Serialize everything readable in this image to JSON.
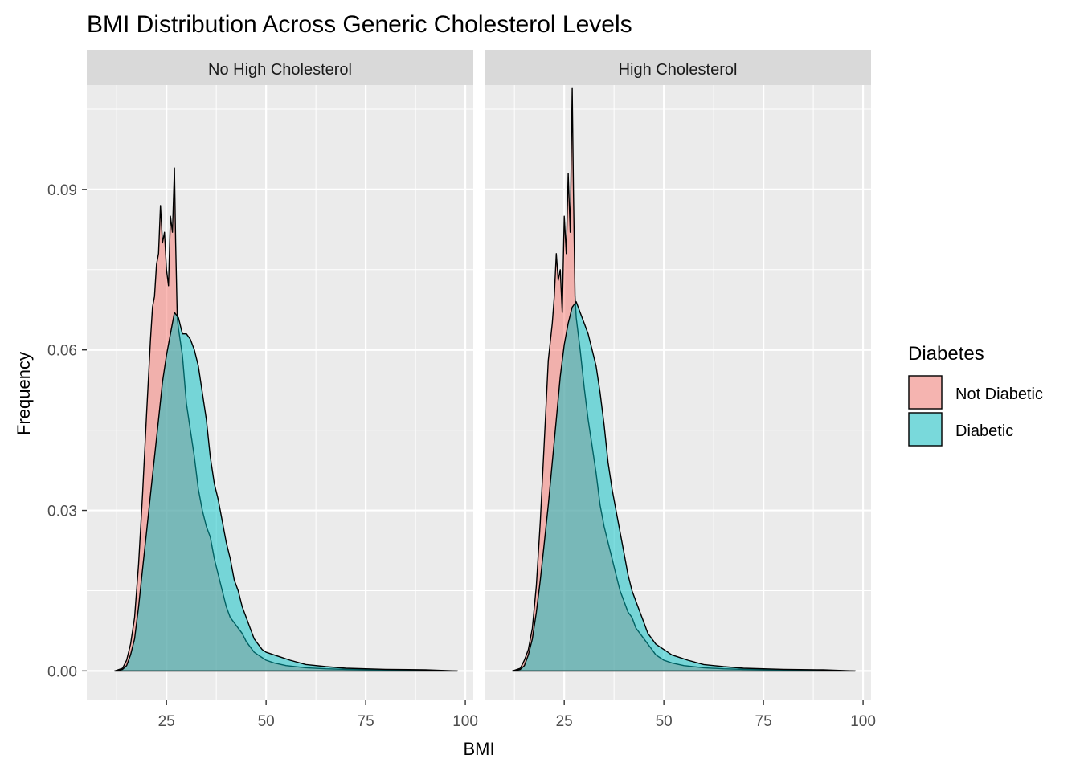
{
  "chart_data": {
    "type": "area",
    "title": "BMI Distribution Across Generic Cholesterol Levels",
    "xlabel": "BMI",
    "ylabel": "Frequency",
    "xlim": [
      5,
      102
    ],
    "ylim": [
      -0.0055,
      0.1095
    ],
    "x_ticks": [
      25,
      50,
      75,
      100
    ],
    "y_ticks": [
      0.0,
      0.03,
      0.06,
      0.09
    ],
    "y_tick_labels": [
      "0.00",
      "0.03",
      "0.06",
      "0.09"
    ],
    "grid": true,
    "legend": {
      "title": "Diabetes",
      "position": "right",
      "entries": [
        {
          "name": "Not Diabetic",
          "color": "#F8766D"
        },
        {
          "name": "Diabetic",
          "color": "#00BFC4"
        }
      ]
    },
    "panels": [
      {
        "label": "No High Cholesterol",
        "series": [
          {
            "name": "Not Diabetic",
            "color": "#F8766D",
            "points": [
              [
                12,
                0
              ],
              [
                14,
                0.0005
              ],
              [
                15,
                0.002
              ],
              [
                16,
                0.005
              ],
              [
                17,
                0.01
              ],
              [
                18,
                0.02
              ],
              [
                19,
                0.033
              ],
              [
                20,
                0.048
              ],
              [
                21,
                0.062
              ],
              [
                21.5,
                0.068
              ],
              [
                22,
                0.07
              ],
              [
                22.5,
                0.076
              ],
              [
                23,
                0.078
              ],
              [
                23.5,
                0.087
              ],
              [
                24,
                0.08
              ],
              [
                24.5,
                0.082
              ],
              [
                25,
                0.075
              ],
              [
                25.5,
                0.072
              ],
              [
                26,
                0.085
              ],
              [
                26.5,
                0.082
              ],
              [
                27,
                0.094
              ],
              [
                27.3,
                0.08
              ],
              [
                27.7,
                0.066
              ],
              [
                28,
                0.064
              ],
              [
                29,
                0.059
              ],
              [
                30,
                0.05
              ],
              [
                31,
                0.045
              ],
              [
                32,
                0.04
              ],
              [
                33,
                0.034
              ],
              [
                34,
                0.03
              ],
              [
                35,
                0.027
              ],
              [
                36,
                0.025
              ],
              [
                37,
                0.021
              ],
              [
                38,
                0.018
              ],
              [
                39,
                0.015
              ],
              [
                40,
                0.012
              ],
              [
                41,
                0.01
              ],
              [
                42,
                0.009
              ],
              [
                43,
                0.008
              ],
              [
                44,
                0.007
              ],
              [
                45,
                0.0055
              ],
              [
                46,
                0.0045
              ],
              [
                47,
                0.0035
              ],
              [
                48,
                0.003
              ],
              [
                50,
                0.002
              ],
              [
                52,
                0.0015
              ],
              [
                55,
                0.001
              ],
              [
                60,
                0.0006
              ],
              [
                65,
                0.0004
              ],
              [
                70,
                0.0003
              ],
              [
                80,
                0.0002
              ],
              [
                90,
                0.0001
              ],
              [
                98,
                0
              ]
            ]
          },
          {
            "name": "Diabetic",
            "color": "#00BFC4",
            "points": [
              [
                12,
                0
              ],
              [
                14,
                0.0003
              ],
              [
                15,
                0.001
              ],
              [
                16,
                0.003
              ],
              [
                17,
                0.006
              ],
              [
                18,
                0.012
              ],
              [
                19,
                0.019
              ],
              [
                20,
                0.026
              ],
              [
                21,
                0.033
              ],
              [
                22,
                0.04
              ],
              [
                23,
                0.047
              ],
              [
                24,
                0.054
              ],
              [
                25,
                0.059
              ],
              [
                26,
                0.063
              ],
              [
                27,
                0.067
              ],
              [
                28,
                0.066
              ],
              [
                29,
                0.063
              ],
              [
                30,
                0.063
              ],
              [
                31,
                0.062
              ],
              [
                32,
                0.06
              ],
              [
                33,
                0.057
              ],
              [
                34,
                0.052
              ],
              [
                35,
                0.047
              ],
              [
                36,
                0.04
              ],
              [
                37,
                0.035
              ],
              [
                38,
                0.032
              ],
              [
                39,
                0.028
              ],
              [
                40,
                0.024
              ],
              [
                41,
                0.021
              ],
              [
                42,
                0.017
              ],
              [
                43,
                0.015
              ],
              [
                44,
                0.012
              ],
              [
                45,
                0.01
              ],
              [
                46,
                0.008
              ],
              [
                47,
                0.006
              ],
              [
                48,
                0.005
              ],
              [
                49,
                0.004
              ],
              [
                50,
                0.0035
              ],
              [
                52,
                0.003
              ],
              [
                54,
                0.0025
              ],
              [
                56,
                0.002
              ],
              [
                60,
                0.0012
              ],
              [
                65,
                0.0008
              ],
              [
                70,
                0.0005
              ],
              [
                80,
                0.0003
              ],
              [
                90,
                0.0002
              ],
              [
                98,
                0
              ]
            ]
          }
        ]
      },
      {
        "label": "High Cholesterol",
        "series": [
          {
            "name": "Not Diabetic",
            "color": "#F8766D",
            "points": [
              [
                12,
                0
              ],
              [
                14,
                0.0005
              ],
              [
                15,
                0.002
              ],
              [
                16,
                0.004
              ],
              [
                17,
                0.008
              ],
              [
                18,
                0.016
              ],
              [
                19,
                0.028
              ],
              [
                20,
                0.043
              ],
              [
                21,
                0.058
              ],
              [
                22,
                0.065
              ],
              [
                22.5,
                0.07
              ],
              [
                23,
                0.078
              ],
              [
                23.5,
                0.073
              ],
              [
                24,
                0.075
              ],
              [
                24.5,
                0.067
              ],
              [
                25,
                0.085
              ],
              [
                25.5,
                0.078
              ],
              [
                26,
                0.093
              ],
              [
                26.5,
                0.082
              ],
              [
                27,
                0.109
              ],
              [
                27.3,
                0.09
              ],
              [
                27.7,
                0.07
              ],
              [
                28,
                0.066
              ],
              [
                29,
                0.06
              ],
              [
                30,
                0.053
              ],
              [
                31,
                0.047
              ],
              [
                32,
                0.042
              ],
              [
                33,
                0.037
              ],
              [
                34,
                0.031
              ],
              [
                35,
                0.027
              ],
              [
                36,
                0.024
              ],
              [
                37,
                0.021
              ],
              [
                38,
                0.018
              ],
              [
                39,
                0.015
              ],
              [
                40,
                0.013
              ],
              [
                41,
                0.011
              ],
              [
                42,
                0.01
              ],
              [
                43,
                0.008
              ],
              [
                44,
                0.007
              ],
              [
                45,
                0.006
              ],
              [
                46,
                0.005
              ],
              [
                47,
                0.004
              ],
              [
                48,
                0.003
              ],
              [
                50,
                0.002
              ],
              [
                52,
                0.0015
              ],
              [
                55,
                0.001
              ],
              [
                60,
                0.0006
              ],
              [
                65,
                0.0004
              ],
              [
                70,
                0.0003
              ],
              [
                80,
                0.0002
              ],
              [
                90,
                0.0001
              ],
              [
                98,
                0
              ]
            ]
          },
          {
            "name": "Diabetic",
            "color": "#00BFC4",
            "points": [
              [
                12,
                0
              ],
              [
                14,
                0.0003
              ],
              [
                15,
                0.001
              ],
              [
                16,
                0.003
              ],
              [
                17,
                0.006
              ],
              [
                18,
                0.011
              ],
              [
                19,
                0.017
              ],
              [
                20,
                0.024
              ],
              [
                21,
                0.031
              ],
              [
                22,
                0.039
              ],
              [
                23,
                0.047
              ],
              [
                24,
                0.055
              ],
              [
                25,
                0.061
              ],
              [
                26,
                0.065
              ],
              [
                27,
                0.068
              ],
              [
                28,
                0.069
              ],
              [
                29,
                0.067
              ],
              [
                30,
                0.065
              ],
              [
                31,
                0.063
              ],
              [
                32,
                0.06
              ],
              [
                33,
                0.057
              ],
              [
                34,
                0.052
              ],
              [
                35,
                0.046
              ],
              [
                36,
                0.039
              ],
              [
                37,
                0.034
              ],
              [
                38,
                0.03
              ],
              [
                39,
                0.026
              ],
              [
                40,
                0.022
              ],
              [
                41,
                0.018
              ],
              [
                42,
                0.015
              ],
              [
                43,
                0.013
              ],
              [
                44,
                0.011
              ],
              [
                45,
                0.009
              ],
              [
                46,
                0.007
              ],
              [
                47,
                0.006
              ],
              [
                48,
                0.005
              ],
              [
                49,
                0.0045
              ],
              [
                50,
                0.004
              ],
              [
                52,
                0.003
              ],
              [
                54,
                0.0025
              ],
              [
                56,
                0.002
              ],
              [
                60,
                0.0012
              ],
              [
                65,
                0.0008
              ],
              [
                70,
                0.0005
              ],
              [
                80,
                0.0003
              ],
              [
                90,
                0.0002
              ],
              [
                98,
                0
              ]
            ]
          }
        ]
      }
    ]
  }
}
